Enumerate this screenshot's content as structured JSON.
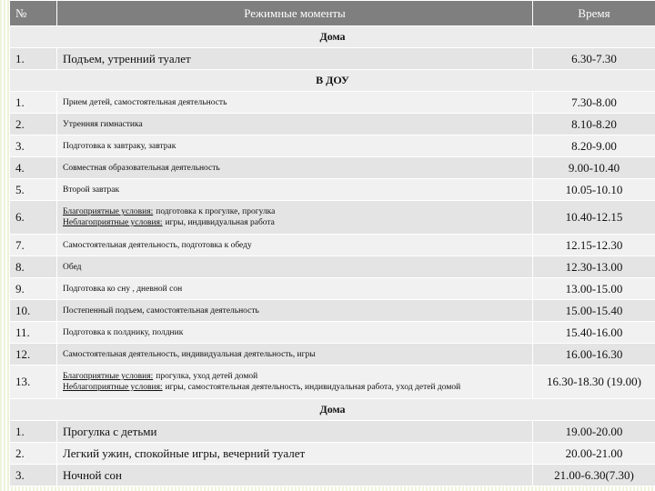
{
  "header": {
    "number": "№",
    "activity": "Режимные моменты",
    "time": "Время"
  },
  "sections": [
    {
      "title": "Дома",
      "rows": [
        {
          "number": "1.",
          "activity": "Подъем, утренний туалет",
          "time": "6.30-7.30"
        }
      ]
    },
    {
      "title": "В ДОУ",
      "rows": [
        {
          "number": "1.",
          "activity": "Прием детей, самостоятельная деятельность",
          "time": "7.30-8.00"
        },
        {
          "number": "2.",
          "activity": "Утренняя гимнастика",
          "time": "8.10-8.20"
        },
        {
          "number": "3.",
          "activity": "Подготовка к завтраку, завтрак",
          "time": "8.20-9.00"
        },
        {
          "number": "4.",
          "activity": "Совместная образовательная деятельность",
          "time": "9.00-10.40"
        },
        {
          "number": "5.",
          "activity": "Второй завтрак",
          "time": "10.05-10.10"
        },
        {
          "number": "6.",
          "lines": [
            {
              "label": "Благоприятные условия:",
              "text": "подготовка к прогулке, прогулка"
            },
            {
              "label": "Неблагоприятные условия:",
              "text": "игры, индивидуальная работа"
            }
          ],
          "time": "10.40-12.15"
        },
        {
          "number": "7.",
          "activity": "Самостоятельная деятельность, подготовка к обеду",
          "time": "12.15-12.30"
        },
        {
          "number": "8.",
          "activity": "Обед",
          "time": "12.30-13.00"
        },
        {
          "number": "9.",
          "activity": "Подготовка ко сну , дневной сон",
          "time": "13.00-15.00"
        },
        {
          "number": "10.",
          "activity": "Постепенный подъем, самостоятельная деятельность",
          "time": "15.00-15.40"
        },
        {
          "number": "11.",
          "activity": "Подготовка к полднику, полдник",
          "time": "15.40-16.00"
        },
        {
          "number": "12.",
          "activity": "Самостоятельная деятельность, индивидуальная деятельность, игры",
          "time": "16.00-16.30"
        },
        {
          "number": "13.",
          "lines": [
            {
              "label": "Благоприятные условия:",
              "text": "прогулка, уход детей домой"
            },
            {
              "label": "Неблагоприятные условия:",
              "text": "игры, самостоятельная деятельность, индивидуальная работа, уход детей домой"
            }
          ],
          "time": "16.30-18.30 (19.00)"
        }
      ]
    },
    {
      "title": "Дома",
      "rows": [
        {
          "number": "1.",
          "activity": "Прогулка с детьми",
          "time": "19.00-20.00"
        },
        {
          "number": "2.",
          "activity": "Легкий ужин, спокойные игры, вечерний туалет",
          "time": "20.00-21.00"
        },
        {
          "number": "3.",
          "activity": "Ночной сон",
          "time": "21.00-6.30(7.30)"
        }
      ]
    }
  ]
}
